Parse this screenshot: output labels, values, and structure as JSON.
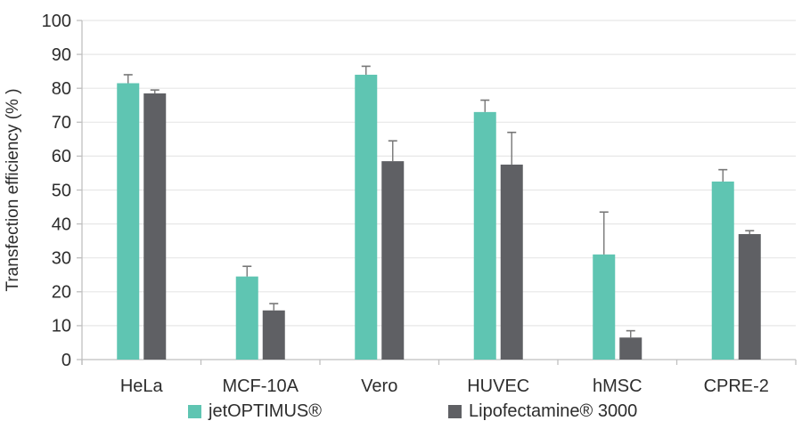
{
  "chart_data": {
    "type": "bar",
    "title": "",
    "xlabel": "",
    "ylabel": "Transfection efficiency (% )",
    "ylim": [
      0,
      100
    ],
    "ytick_step": 10,
    "yticks": [
      0,
      10,
      20,
      30,
      40,
      50,
      60,
      70,
      80,
      90,
      100
    ],
    "grid": true,
    "legend_position": "bottom",
    "categories": [
      "HeLa",
      "MCF-10A",
      "Vero",
      "HUVEC",
      "hMSC",
      "CPRE-2"
    ],
    "series": [
      {
        "name": "jetOPTIMUS®",
        "color": "#5FC5B2",
        "values": [
          81.5,
          24.5,
          84,
          73,
          31,
          52.5
        ],
        "errors_plus": [
          2.5,
          3,
          2.5,
          3.5,
          12.5,
          3.5
        ]
      },
      {
        "name": "Lipofectamine® 3000",
        "color": "#5F6064",
        "values": [
          78.5,
          14.5,
          58.5,
          57.5,
          6.5,
          37
        ],
        "errors_plus": [
          1,
          2,
          6,
          9.5,
          2,
          1
        ]
      }
    ]
  },
  "colors": {
    "background": "#FFFFFF",
    "axis": "#BFBFBF",
    "gridline": "#E7E7E7",
    "error_bar": "#767676",
    "text": "#2D2D2D"
  }
}
